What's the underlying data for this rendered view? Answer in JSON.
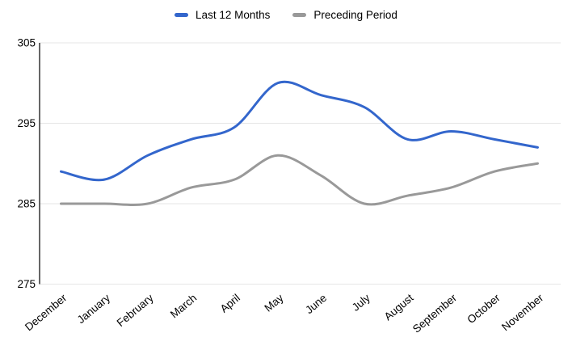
{
  "chart_data": {
    "type": "line",
    "title": "",
    "x": [
      "December",
      "January",
      "February",
      "March",
      "April",
      "May",
      "June",
      "July",
      "August",
      "September",
      "October",
      "November"
    ],
    "series": [
      {
        "name": "Last 12 Months",
        "color": "#3366CC",
        "values": [
          289,
          288,
          291,
          293,
          294.5,
          300,
          298.5,
          297,
          293,
          294,
          293,
          292
        ]
      },
      {
        "name": "Preceding Period",
        "color": "#999999",
        "values": [
          285,
          285,
          285,
          287,
          288,
          291,
          288.5,
          285,
          286,
          287,
          289,
          290
        ]
      }
    ],
    "xlabel": "",
    "ylabel": "",
    "ylim": [
      275,
      305
    ],
    "yticks": [
      275,
      285,
      295,
      305
    ],
    "grid": true,
    "legend_position": "top",
    "curve": "smooth",
    "x_label_rotation_deg": -40
  },
  "colors": {
    "background": "#ffffff",
    "gridline": "#e6e6e6",
    "axis_line": "#333333",
    "label_text": "#000000"
  }
}
